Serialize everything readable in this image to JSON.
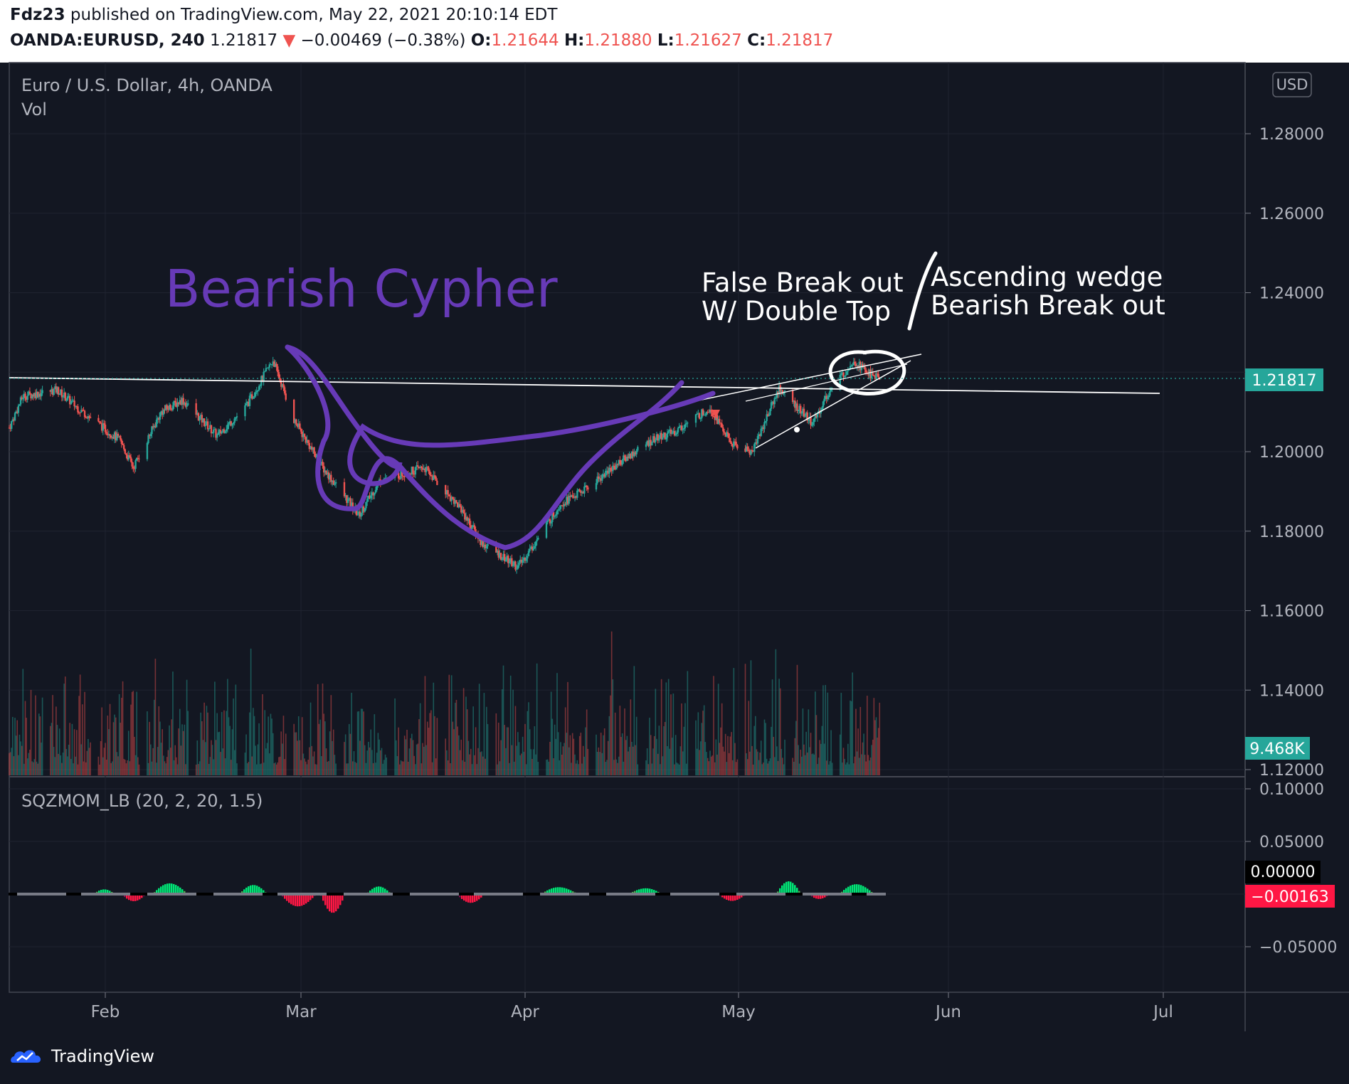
{
  "header": {
    "author": "Fdz23",
    "published_text": "published on TradingView.com, May 22, 2021 20:10:14 EDT",
    "symbol": "OANDA:EURUSD, 240",
    "last": "1.21817",
    "down_arrow": "▼",
    "change": "−0.00469 (−0.38%)",
    "o_label": "O:",
    "o_value": "1.21644",
    "h_label": "H:",
    "h_value": "1.21880",
    "l_label": "L:",
    "l_value": "1.21627",
    "c_label": "C:",
    "c_value": "1.21817"
  },
  "legend": {
    "title": "Euro / U.S. Dollar, 4h, OANDA",
    "vol": "Vol",
    "indicator": "SQZMOM_LB (20, 2, 20, 1.5)"
  },
  "currency_button": "USD",
  "price_axis_labels": [
    "1.28000",
    "1.26000",
    "1.24000",
    "1.20000",
    "1.18000",
    "1.16000",
    "1.14000",
    "1.12000"
  ],
  "price_badge": "1.21817",
  "volume_badge": "9.468K",
  "osc_axis_labels": [
    "0.10000",
    "0.05000",
    "−0.05000"
  ],
  "osc_zero_badge": "0.00000",
  "osc_value_badge": "−0.00163",
  "time_axis_labels": [
    "Feb",
    "Mar",
    "Apr",
    "May",
    "Jun",
    "Jul"
  ],
  "annotations": {
    "title": "Bearish Cypher",
    "false_break_1": "False Break out",
    "false_break_2": "W/ Double Top",
    "wedge_1": "Ascending wedge",
    "wedge_2": "Bearish Break out"
  },
  "footer": {
    "brand": "TradingView"
  },
  "colors": {
    "up": "#26a69a",
    "down": "#ef5350",
    "pattern": "#673ab7",
    "background": "#131722"
  },
  "chart_data": {
    "type": "candlestick",
    "symbol": "OANDA:EURUSD",
    "interval": "4h",
    "ylim": [
      1.12,
      1.29
    ],
    "x_ticks": [
      "Feb",
      "Mar",
      "Apr",
      "May",
      "Jun",
      "Jul"
    ],
    "close_path": [
      {
        "date": "2021-01-18",
        "price": 1.206
      },
      {
        "date": "2021-01-20",
        "price": 1.214
      },
      {
        "date": "2021-01-25",
        "price": 1.2155
      },
      {
        "date": "2021-01-28",
        "price": 1.211
      },
      {
        "date": "2021-02-03",
        "price": 1.203
      },
      {
        "date": "2021-02-05",
        "price": 1.196
      },
      {
        "date": "2021-02-09",
        "price": 1.21
      },
      {
        "date": "2021-02-12",
        "price": 1.213
      },
      {
        "date": "2021-02-17",
        "price": 1.204
      },
      {
        "date": "2021-02-21",
        "price": 1.211
      },
      {
        "date": "2021-02-25",
        "price": 1.223
      },
      {
        "date": "2021-02-28",
        "price": 1.208
      },
      {
        "date": "2021-03-04",
        "price": 1.196
      },
      {
        "date": "2021-03-09",
        "price": 1.184
      },
      {
        "date": "2021-03-12",
        "price": 1.193
      },
      {
        "date": "2021-03-18",
        "price": 1.196
      },
      {
        "date": "2021-03-23",
        "price": 1.186
      },
      {
        "date": "2021-03-26",
        "price": 1.177
      },
      {
        "date": "2021-03-31",
        "price": 1.171
      },
      {
        "date": "2021-04-02",
        "price": 1.176
      },
      {
        "date": "2021-04-06",
        "price": 1.187
      },
      {
        "date": "2021-04-09",
        "price": 1.19
      },
      {
        "date": "2021-04-14",
        "price": 1.197
      },
      {
        "date": "2021-04-19",
        "price": 1.203
      },
      {
        "date": "2021-04-22",
        "price": 1.205
      },
      {
        "date": "2021-04-27",
        "price": 1.211
      },
      {
        "date": "2021-04-30",
        "price": 1.202
      },
      {
        "date": "2021-05-03",
        "price": 1.2
      },
      {
        "date": "2021-05-07",
        "price": 1.216
      },
      {
        "date": "2021-05-12",
        "price": 1.207
      },
      {
        "date": "2021-05-14",
        "price": 1.214
      },
      {
        "date": "2021-05-18",
        "price": 1.223
      },
      {
        "date": "2021-05-20",
        "price": 1.22
      },
      {
        "date": "2021-05-22",
        "price": 1.2182
      }
    ],
    "last_close": 1.21817,
    "last_volume": "9.468K",
    "oscillator": {
      "name": "SQZMOM_LB (20, 2, 20, 1.5)",
      "ylim": [
        -0.08,
        0.11
      ],
      "last": -0.00163
    },
    "drawings": [
      "Bearish Cypher",
      "False Break out W/ Double Top",
      "Ascending wedge Bearish Break out"
    ]
  }
}
